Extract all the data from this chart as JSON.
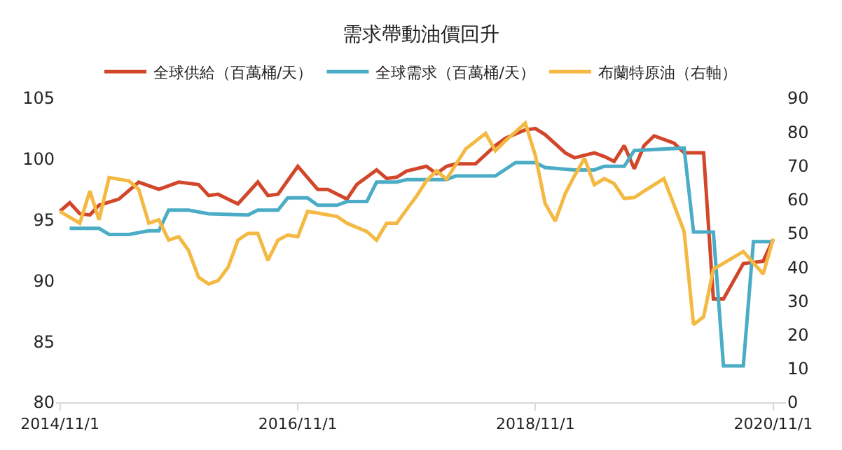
{
  "chart_data": {
    "type": "line",
    "title": "需求帶動油價回升",
    "xlim": [
      "2014-10-20",
      "2020-12-10"
    ],
    "xticks": [
      {
        "value": "2014-11-01",
        "label": "2014/11/1"
      },
      {
        "value": "2016-11-01",
        "label": "2016/11/1"
      },
      {
        "value": "2018-11-01",
        "label": "2018/11/1"
      },
      {
        "value": "2020-11-01",
        "label": "2020/11/1"
      }
    ],
    "ylim": [
      80,
      105
    ],
    "yticks": [
      80,
      85,
      90,
      95,
      100,
      105
    ],
    "y2lim": [
      0,
      90
    ],
    "y2ticks": [
      0,
      10,
      20,
      30,
      40,
      50,
      60,
      70,
      80,
      90
    ],
    "legend": "top",
    "series": [
      {
        "name": "全球供給（百萬桶/天）",
        "color": "#d2462a",
        "x": [
          "2014-11",
          "2014-12",
          "2015-01",
          "2015-02",
          "2015-03",
          "2015-05",
          "2015-07",
          "2015-09",
          "2015-11",
          "2016-01",
          "2016-02",
          "2016-03",
          "2016-05",
          "2016-07",
          "2016-08",
          "2016-09",
          "2016-11",
          "2017-01",
          "2017-02",
          "2017-04",
          "2017-05",
          "2017-07",
          "2017-08",
          "2017-09",
          "2017-10",
          "2017-12",
          "2018-01",
          "2018-02",
          "2018-03",
          "2018-05",
          "2018-07",
          "2018-08",
          "2018-10",
          "2018-11",
          "2018-12",
          "2019-02",
          "2019-03",
          "2019-05",
          "2019-06",
          "2019-07",
          "2019-08",
          "2019-09",
          "2019-10",
          "2019-11",
          "2020-01",
          "2020-02",
          "2020-04",
          "2020-05",
          "2020-06",
          "2020-08",
          "2020-10",
          "2020-11"
        ],
        "values": [
          95.7,
          96.4,
          95.5,
          95.4,
          96.2,
          96.7,
          98.1,
          97.5,
          98.1,
          97.9,
          97.0,
          97.1,
          96.3,
          98.1,
          97.0,
          97.1,
          99.4,
          97.5,
          97.5,
          96.7,
          97.9,
          99.1,
          98.4,
          98.5,
          99.0,
          99.4,
          98.8,
          99.4,
          99.6,
          99.6,
          101.1,
          101.7,
          102.4,
          102.5,
          102.0,
          100.5,
          100.1,
          100.5,
          100.2,
          99.8,
          101.1,
          99.2,
          101.1,
          101.9,
          101.3,
          100.5,
          100.5,
          88.5,
          88.5,
          91.4,
          91.6,
          93.4
        ]
      },
      {
        "name": "全球需求（百萬桶/天）",
        "color": "#4bacc6",
        "x": [
          "2014-12",
          "2015-03",
          "2015-04",
          "2015-06",
          "2015-08",
          "2015-09",
          "2015-10",
          "2015-12",
          "2016-02",
          "2016-06",
          "2016-07",
          "2016-09",
          "2016-10",
          "2016-12",
          "2017-01",
          "2017-03",
          "2017-04",
          "2017-06",
          "2017-07",
          "2017-09",
          "2017-10",
          "2018-02",
          "2018-03",
          "2018-07",
          "2018-09",
          "2018-11",
          "2018-12",
          "2019-03",
          "2019-05",
          "2019-06",
          "2019-08",
          "2019-09",
          "2020-02",
          "2020-03",
          "2020-05",
          "2020-06",
          "2020-08",
          "2020-09",
          "2020-11"
        ],
        "values": [
          94.3,
          94.3,
          93.8,
          93.8,
          94.1,
          94.1,
          95.8,
          95.8,
          95.5,
          95.4,
          95.8,
          95.8,
          96.8,
          96.8,
          96.2,
          96.2,
          96.5,
          96.5,
          98.1,
          98.1,
          98.3,
          98.3,
          98.6,
          98.6,
          99.7,
          99.7,
          99.3,
          99.1,
          99.1,
          99.4,
          99.4,
          100.7,
          100.9,
          94.0,
          94.0,
          83.0,
          83.0,
          93.2,
          93.2
        ]
      },
      {
        "name": "布蘭特原油（右軸）",
        "color": "#f4b942",
        "axis": "y2",
        "x": [
          "2014-11",
          "2015-01",
          "2015-02",
          "2015-03",
          "2015-04",
          "2015-06",
          "2015-07",
          "2015-08",
          "2015-09",
          "2015-10",
          "2015-11",
          "2015-12",
          "2016-01",
          "2016-02",
          "2016-03",
          "2016-04",
          "2016-05",
          "2016-06",
          "2016-07",
          "2016-08",
          "2016-09",
          "2016-10",
          "2016-11",
          "2016-12",
          "2017-01",
          "2017-03",
          "2017-04",
          "2017-06",
          "2017-07",
          "2017-08",
          "2017-09",
          "2017-10",
          "2017-11",
          "2017-12",
          "2018-01",
          "2018-02",
          "2018-04",
          "2018-06",
          "2018-07",
          "2018-08",
          "2018-10",
          "2018-11",
          "2018-12",
          "2019-01",
          "2019-02",
          "2019-03",
          "2019-04",
          "2019-05",
          "2019-06",
          "2019-07",
          "2019-08",
          "2019-09",
          "2019-10",
          "2019-12",
          "2020-02",
          "2020-03",
          "2020-04",
          "2020-05",
          "2020-08",
          "2020-10",
          "2020-11"
        ],
        "values": [
          56.5,
          53,
          62.5,
          54,
          66.5,
          65.5,
          63,
          53,
          54,
          48,
          49,
          45,
          37,
          35,
          36,
          40,
          48,
          50,
          50,
          42,
          48,
          49.5,
          49,
          56.5,
          56,
          55,
          53,
          50.5,
          48,
          53,
          53,
          57,
          61,
          65.5,
          68.5,
          66,
          75,
          79.6,
          74.4,
          77.4,
          82.6,
          73,
          58.8,
          53.6,
          61.8,
          67,
          72.2,
          64.4,
          66.2,
          64.7,
          60.3,
          60.6,
          62.5,
          66.2,
          50.6,
          23,
          25.3,
          39.4,
          44.6,
          38,
          48.4
        ]
      }
    ]
  }
}
